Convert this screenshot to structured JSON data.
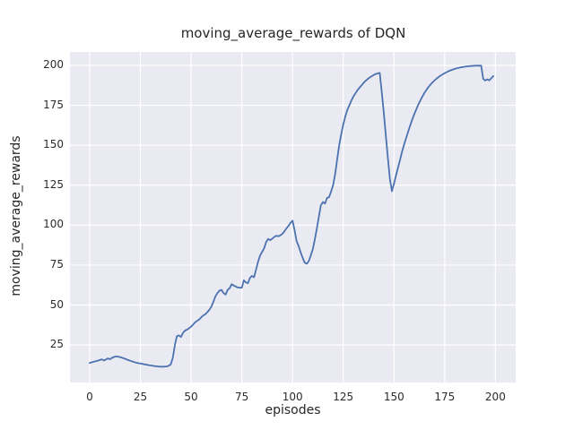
{
  "figure": {
    "title": "moving_average_rewards of DQN",
    "background_color": "#ffffff",
    "plot_background_color": "#eaeaf2",
    "grid_color": "#ffffff",
    "line_color": "#4c72b0",
    "text_color": "#262626"
  },
  "chart_data": {
    "type": "line",
    "title": "moving_average_rewards of DQN",
    "xlabel": "episodes",
    "ylabel": "moving_average_rewards",
    "xticks": [
      0,
      25,
      50,
      75,
      100,
      125,
      150,
      175,
      200
    ],
    "yticks": [
      25,
      50,
      75,
      100,
      125,
      150,
      175,
      200
    ],
    "xlim": [
      -9.7,
      210
    ],
    "ylim": [
      1.5,
      208.4
    ],
    "grid": true,
    "legend": false,
    "series": [
      {
        "name": "moving_average_rewards",
        "x": {
          "start": 0,
          "step": 1,
          "description": "episode index 0-199"
        },
        "values": [
          13.7,
          14.1,
          14.5,
          14.8,
          15.2,
          15.6,
          16.0,
          15.3,
          15.9,
          16.6,
          16.1,
          16.9,
          17.5,
          17.9,
          17.7,
          17.4,
          17.0,
          16.6,
          16.1,
          15.6,
          15.1,
          14.7,
          14.3,
          13.9,
          13.6,
          13.4,
          13.2,
          12.9,
          12.7,
          12.4,
          12.2,
          12.0,
          11.8,
          11.7,
          11.5,
          11.4,
          11.4,
          11.5,
          11.6,
          12.0,
          12.8,
          17.0,
          25.0,
          30.5,
          31.0,
          30.0,
          32.5,
          34.0,
          34.6,
          35.5,
          36.5,
          37.8,
          39.2,
          40.1,
          41.0,
          42.3,
          43.5,
          44.2,
          45.5,
          47.0,
          49.0,
          52.0,
          55.5,
          57.5,
          59.0,
          59.5,
          57.5,
          56.5,
          59.5,
          60.5,
          63.0,
          62.2,
          61.6,
          61.0,
          60.8,
          60.8,
          65.5,
          64.2,
          63.6,
          67.0,
          68.2,
          67.4,
          72.0,
          77.0,
          81.0,
          83.2,
          85.5,
          89.5,
          91.4,
          90.6,
          91.5,
          92.6,
          93.4,
          93.0,
          93.6,
          94.5,
          96.1,
          98.0,
          99.5,
          101.4,
          102.8,
          97.0,
          90.0,
          87.0,
          83.0,
          79.5,
          76.5,
          75.8,
          77.5,
          81.0,
          85.0,
          91.0,
          98.0,
          105.5,
          112.5,
          114.5,
          113.5,
          117.0,
          117.5,
          121.0,
          125.0,
          132.0,
          141.0,
          150.0,
          157.0,
          163.0,
          168.0,
          172.0,
          175.0,
          178.0,
          180.5,
          182.5,
          184.5,
          186.0,
          187.5,
          189.0,
          190.3,
          191.4,
          192.4,
          193.2,
          194.0,
          194.6,
          195.0,
          195.3,
          183.0,
          170.0,
          156.0,
          142.0,
          129.0,
          121.2,
          126.0,
          131.0,
          136.0,
          141.0,
          146.0,
          150.5,
          154.5,
          158.5,
          162.5,
          166.0,
          169.5,
          172.5,
          175.5,
          178.0,
          180.5,
          182.7,
          184.7,
          186.4,
          188.0,
          189.4,
          190.6,
          191.7,
          192.7,
          193.6,
          194.4,
          195.1,
          195.8,
          196.4,
          196.9,
          197.4,
          197.8,
          198.2,
          198.5,
          198.8,
          199.0,
          199.2,
          199.4,
          199.5,
          199.6,
          199.7,
          199.8,
          199.8,
          199.8,
          199.8,
          191.5,
          190.5,
          191.3,
          190.6,
          192.0,
          193.3
        ]
      }
    ]
  }
}
